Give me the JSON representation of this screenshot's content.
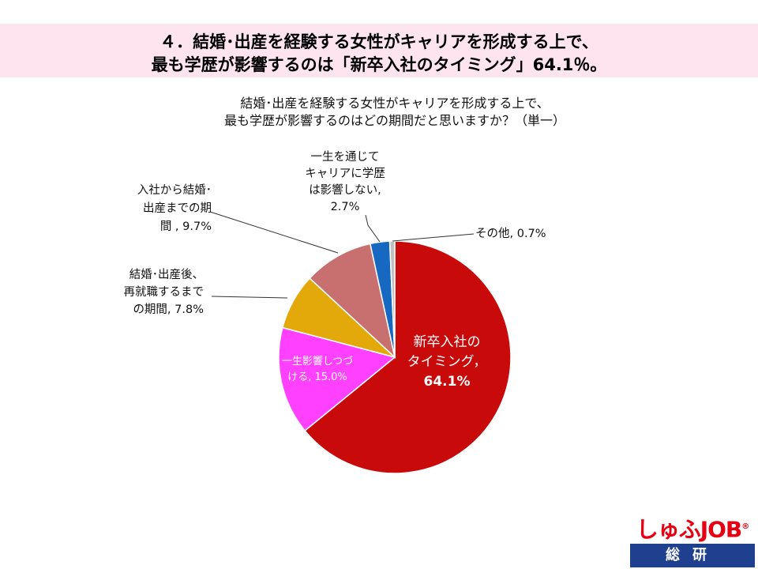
{
  "header": {
    "line1": "４．結婚･出産を経験する女性がキャリアを形成する上で、",
    "line2": "最も学歴が影響するのは「新卒入社のタイミング」64.1％。"
  },
  "subtitle": {
    "line1": "結婚･出産を経験する女性がキャリアを形成する上で、",
    "line2": "最も学歴が影響するのはどの期間だと思いますか？（単一）"
  },
  "chart_data": {
    "type": "pie",
    "title": "結婚･出産を経験する女性がキャリアを形成する上で、最も学歴が影響するのはどの期間だと思いますか？（単一）",
    "unit": "%",
    "slices": [
      {
        "name": "新卒入社のタイミング",
        "value": 64.1,
        "color": "#c80a0a",
        "label_lines": [
          "新卒入社の",
          "タイミング，",
          "64.1%"
        ]
      },
      {
        "name": "一生影響しつづける",
        "value": 15.0,
        "color": "#ff40ff",
        "label_lines": [
          "一生影響しつづ",
          "ける, 15.0%"
        ]
      },
      {
        "name": "結婚･出産後、再就職するまでの期間",
        "value": 7.8,
        "color": "#e3a80a",
        "label_lines": [
          "結婚･出産後、",
          "再就職するまで",
          "の期間, 7.8%"
        ]
      },
      {
        "name": "入社から結婚･出産までの期間",
        "value": 9.7,
        "color": "#c87070",
        "label_lines": [
          "入社から結婚･",
          "出産までの期",
          "間 , 9.7%"
        ]
      },
      {
        "name": "一生を通じてキャリアに学歴は影響しない",
        "value": 2.7,
        "color": "#1668c0",
        "label_lines": [
          "一生を通じて",
          "キャリアに学歴",
          "は影響しない,",
          "2.7%"
        ]
      },
      {
        "name": "その他",
        "value": 0.7,
        "color": "#c0c0c0",
        "label_lines": [
          "その他, 0.7%"
        ]
      }
    ]
  },
  "logo": {
    "brand": "しゅふJOB",
    "registered": "®",
    "sub": "総研",
    "brand_color": "#e60012",
    "bar_color": "#1f3f8f"
  }
}
